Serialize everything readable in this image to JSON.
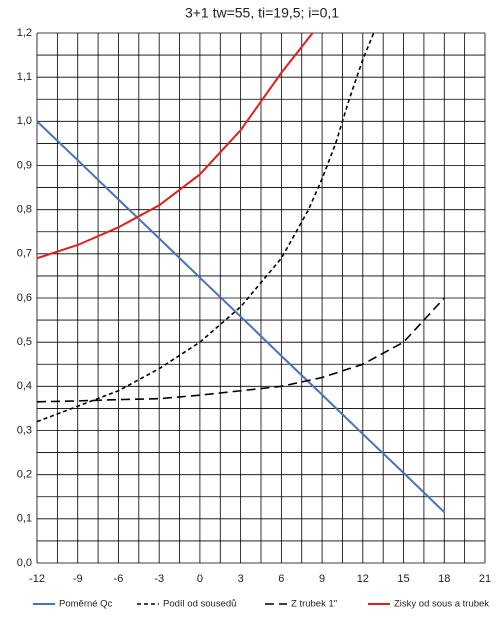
{
  "chart_data": {
    "type": "line",
    "title": "3+1 tw=55, ti=19,5; i=0,1",
    "xlim": [
      -12,
      21
    ],
    "xticks": [
      -12,
      -9,
      -6,
      -3,
      0,
      3,
      6,
      9,
      12,
      15,
      18,
      21
    ],
    "ylim": [
      0,
      1.2
    ],
    "yticks": [
      {
        "value": 0,
        "label": "0,0"
      },
      {
        "value": 0.1,
        "label": "0,1"
      },
      {
        "value": 0.2,
        "label": "0,2"
      },
      {
        "value": 0.3,
        "label": "0,3"
      },
      {
        "value": 0.4,
        "label": "0,4"
      },
      {
        "value": 0.5,
        "label": "0,5"
      },
      {
        "value": 0.6,
        "label": "0,6"
      },
      {
        "value": 0.7,
        "label": "0,7"
      },
      {
        "value": 0.8,
        "label": "0,8"
      },
      {
        "value": 0.9,
        "label": "0,9"
      },
      {
        "value": 1.0,
        "label": "1,0"
      },
      {
        "value": 1.1,
        "label": "1,1"
      },
      {
        "value": 1.2,
        "label": "1,2"
      }
    ],
    "x_minor_ticks": [
      -10.5,
      -7.5,
      -4.5,
      -1.5,
      1.5,
      4.5,
      7.5,
      10.5,
      13.5,
      16.5,
      19.5
    ],
    "y_minor_ticks": [
      0.05,
      0.15,
      0.25,
      0.35,
      0.45,
      0.55,
      0.65,
      0.75,
      0.85,
      0.95,
      1.05,
      1.15
    ],
    "grid": true,
    "legend": "bottom",
    "series": [
      {
        "name": "Poměrné Qc",
        "color": "#4a72b8",
        "dash": "solid",
        "x": [
          -12,
          -9,
          -6,
          -3,
          0,
          3,
          6,
          9,
          12,
          15,
          18
        ],
        "values": [
          1.0,
          0.912,
          0.823,
          0.735,
          0.646,
          0.558,
          0.469,
          0.381,
          0.292,
          0.204,
          0.115
        ]
      },
      {
        "name": "Podíl od sousedů",
        "color": "#000000",
        "dash": "short",
        "x": [
          -12,
          -9,
          -6,
          -3,
          0,
          3,
          6,
          8,
          9,
          10,
          11,
          12,
          12.8
        ],
        "values": [
          0.32,
          0.355,
          0.39,
          0.44,
          0.5,
          0.58,
          0.69,
          0.8,
          0.87,
          0.95,
          1.05,
          1.14,
          1.2
        ]
      },
      {
        "name": "Z trubek 1\"",
        "color": "#000000",
        "dash": "long",
        "x": [
          -12,
          -9,
          -6,
          -3,
          0,
          3,
          6,
          9,
          12,
          15,
          18
        ],
        "values": [
          0.365,
          0.367,
          0.37,
          0.372,
          0.38,
          0.39,
          0.4,
          0.42,
          0.45,
          0.5,
          0.6
        ]
      },
      {
        "name": "Zisky od sous a trubek",
        "color": "#e02020",
        "dash": "solid",
        "x": [
          -12,
          -9,
          -6,
          -3,
          0,
          3,
          6,
          8.3
        ],
        "values": [
          0.69,
          0.72,
          0.76,
          0.81,
          0.88,
          0.98,
          1.11,
          1.2
        ]
      }
    ]
  }
}
